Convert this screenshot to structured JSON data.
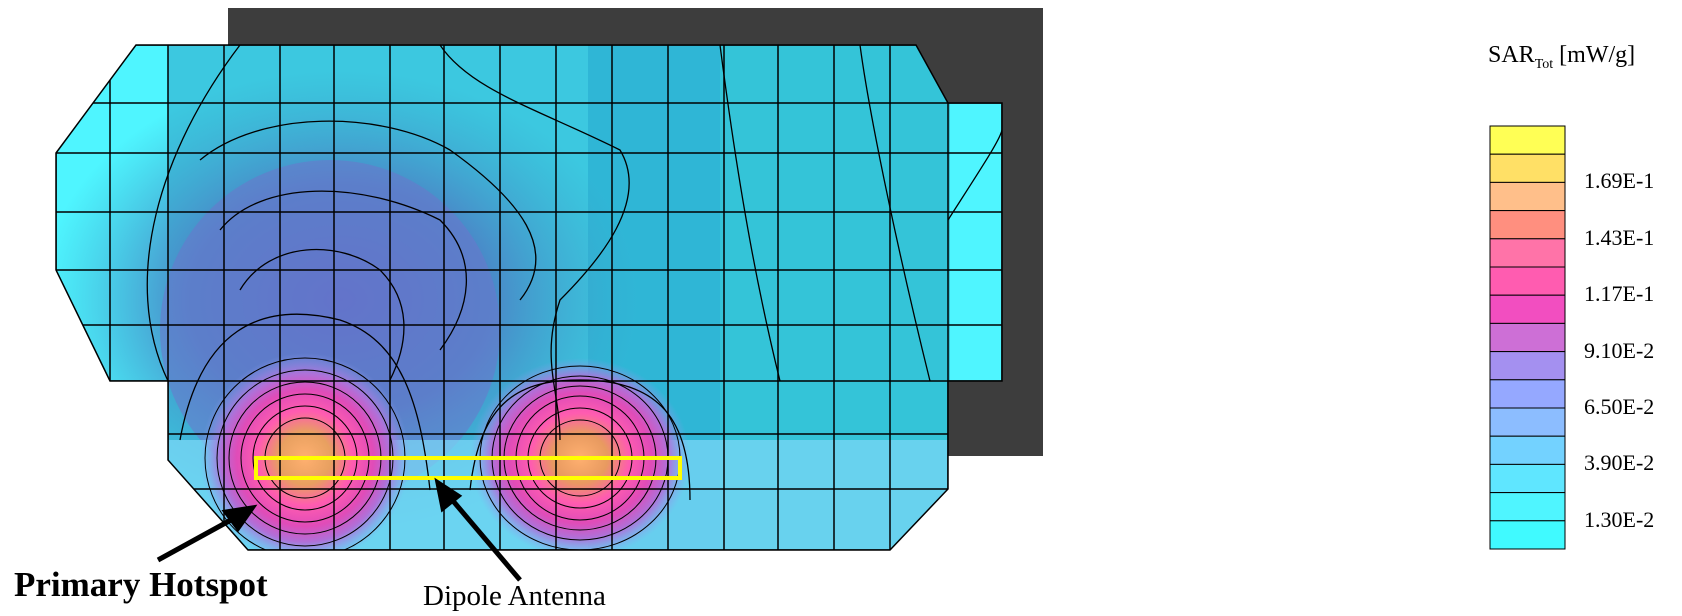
{
  "chart_data": {
    "type": "heatmap",
    "title": "",
    "colorbar": {
      "quantity": "SAR",
      "quantity_sub": "Tot",
      "unit": "[mW/g]",
      "tick_labels": [
        "1.69E-1",
        "1.43E-1",
        "1.17E-1",
        "9.10E-2",
        "6.50E-2",
        "3.90E-2",
        "1.30E-2"
      ],
      "tick_values": [
        0.169,
        0.143,
        0.117,
        0.091,
        0.065,
        0.039,
        0.013
      ],
      "colors_top_to_bottom": [
        "#ffff55",
        "#ffe066",
        "#ffbf8a",
        "#ff8f7f",
        "#ff73a8",
        "#ff5cb0",
        "#f24ec0",
        "#cd6fd6",
        "#a490f0",
        "#95a8ff",
        "#8cbdff",
        "#73d2ff",
        "#5fe6ff",
        "#4ff5ff",
        "#40faff"
      ]
    },
    "hotspots": [
      {
        "name": "primary",
        "approx_peak_mw_per_g": 0.18
      },
      {
        "name": "secondary",
        "approx_peak_mw_per_g": 0.17
      }
    ]
  },
  "annotations": {
    "primary_hotspot": "Primary Hotspot",
    "dipole_antenna": "Dipole Antenna"
  },
  "colors": {
    "background_device": "#3d3d3d",
    "antenna_outline": "#ffff00",
    "grid_line": "#000000"
  }
}
